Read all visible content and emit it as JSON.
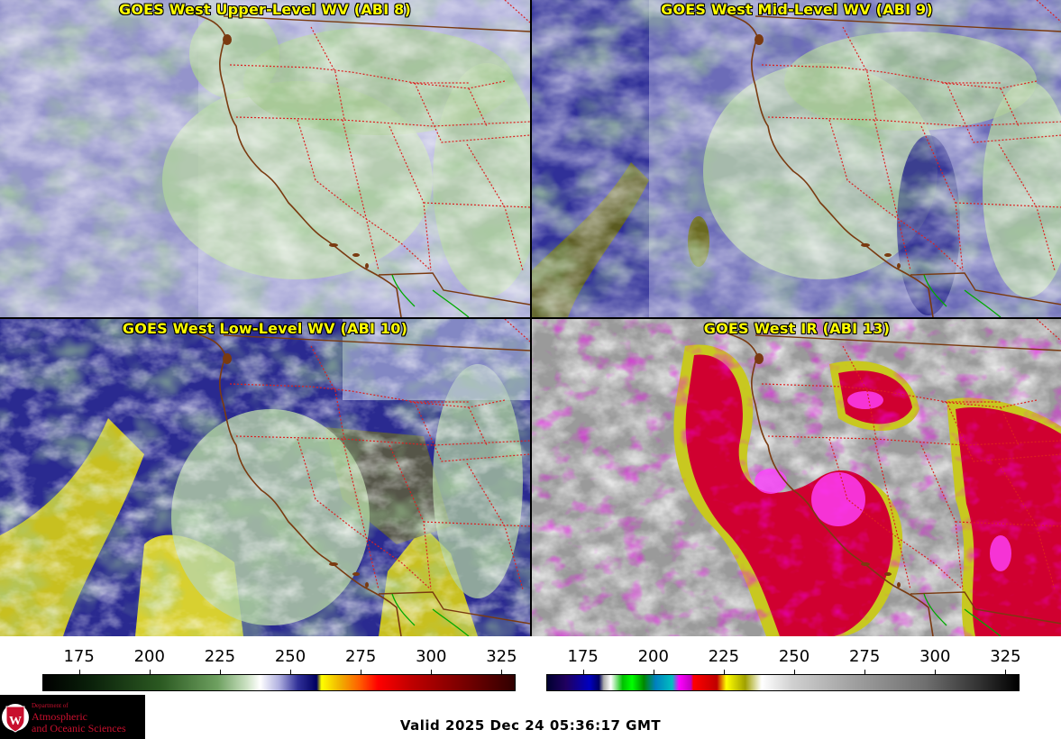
{
  "panels": [
    {
      "id": "upper",
      "title": "GOES West Upper-Level WV (ABI 8)"
    },
    {
      "id": "mid",
      "title": "GOES West Mid-Level WV (ABI 9)"
    },
    {
      "id": "low",
      "title": "GOES West Low-Level WV (ABI 10)"
    },
    {
      "id": "ir",
      "title": "GOES West IR (ABI 13)"
    }
  ],
  "colorbars": {
    "wv": {
      "ticks": [
        "175",
        "200",
        "225",
        "250",
        "275",
        "300",
        "325"
      ],
      "range": [
        162,
        330
      ]
    },
    "ir": {
      "ticks": [
        "175",
        "200",
        "225",
        "250",
        "275",
        "300",
        "325"
      ],
      "range": [
        162,
        330
      ]
    }
  },
  "logo": {
    "line1": "Department of",
    "line2": "Atmospheric",
    "line3": "and Oceanic Sciences",
    "brand_color": "#c8102e",
    "icon": "uw-crest-icon"
  },
  "footer": {
    "valid_time": "Valid 2025 Dec 24 05:36:17 GMT"
  },
  "colors": {
    "title": "#ffff00",
    "state_lines": "#dd2020",
    "coastline": "#7a3a10",
    "mexico_border": "#00aa00"
  }
}
